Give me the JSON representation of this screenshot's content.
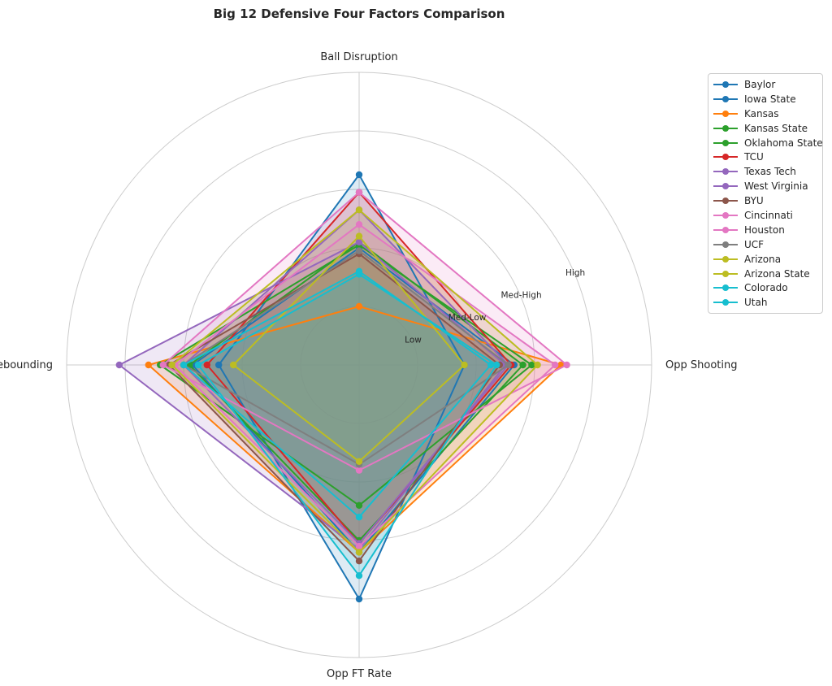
{
  "chart_data": {
    "type": "radar",
    "title": "Big 12 Defensive Four Factors Comparison",
    "axes": [
      "Ball Disruption",
      "Opp Shooting",
      "Opp FT Rate",
      "Def Rebounding"
    ],
    "rlim": [
      0,
      5
    ],
    "ring_ticks": [
      {
        "value": 1,
        "label": "Low"
      },
      {
        "value": 2,
        "label": "Med-Low"
      },
      {
        "value": 3,
        "label": "Med-High"
      },
      {
        "value": 4,
        "label": "High"
      },
      {
        "value": 5,
        "label": ""
      }
    ],
    "grid": true,
    "legend_position": "upper-right-outside",
    "series": [
      {
        "name": "Baylor",
        "color": "#1f77b4",
        "values": [
          3.25,
          1.8,
          4.0,
          2.4
        ]
      },
      {
        "name": "Iowa State",
        "color": "#1f77b4",
        "values": [
          2.0,
          2.65,
          3.2,
          2.85
        ]
      },
      {
        "name": "Kansas",
        "color": "#ff7f0e",
        "values": [
          1.0,
          3.45,
          3.2,
          3.6
        ]
      },
      {
        "name": "Kansas State",
        "color": "#2ca02c",
        "values": [
          2.1,
          2.8,
          3.0,
          2.9
        ]
      },
      {
        "name": "Oklahoma State",
        "color": "#2ca02c",
        "values": [
          2.05,
          2.95,
          2.4,
          3.4
        ]
      },
      {
        "name": "TCU",
        "color": "#d62728",
        "values": [
          2.95,
          2.6,
          3.05,
          2.6
        ]
      },
      {
        "name": "Texas Tech",
        "color": "#9467bd",
        "values": [
          2.65,
          2.55,
          3.05,
          3.0
        ]
      },
      {
        "name": "West Virginia",
        "color": "#9467bd",
        "values": [
          2.1,
          2.5,
          3.15,
          4.1
        ]
      },
      {
        "name": "BYU",
        "color": "#8c564b",
        "values": [
          1.9,
          2.4,
          3.35,
          3.25
        ]
      },
      {
        "name": "Cincinnati",
        "color": "#e377c2",
        "values": [
          2.95,
          3.55,
          1.8,
          3.35
        ]
      },
      {
        "name": "Houston",
        "color": "#e377c2",
        "values": [
          2.4,
          3.35,
          3.1,
          3.15
        ]
      },
      {
        "name": "UCF",
        "color": "#7f7f7f",
        "values": [
          1.95,
          2.55,
          1.7,
          3.0
        ]
      },
      {
        "name": "Arizona",
        "color": "#bcbd22",
        "values": [
          2.2,
          1.8,
          1.65,
          2.15
        ]
      },
      {
        "name": "Arizona State",
        "color": "#bcbd22",
        "values": [
          2.65,
          3.05,
          3.2,
          3.2
        ]
      },
      {
        "name": "Colorado",
        "color": "#17becf",
        "values": [
          1.6,
          2.25,
          2.6,
          3.0
        ]
      },
      {
        "name": "Utah",
        "color": "#17becf",
        "values": [
          1.55,
          2.35,
          3.6,
          2.75
        ]
      }
    ]
  }
}
